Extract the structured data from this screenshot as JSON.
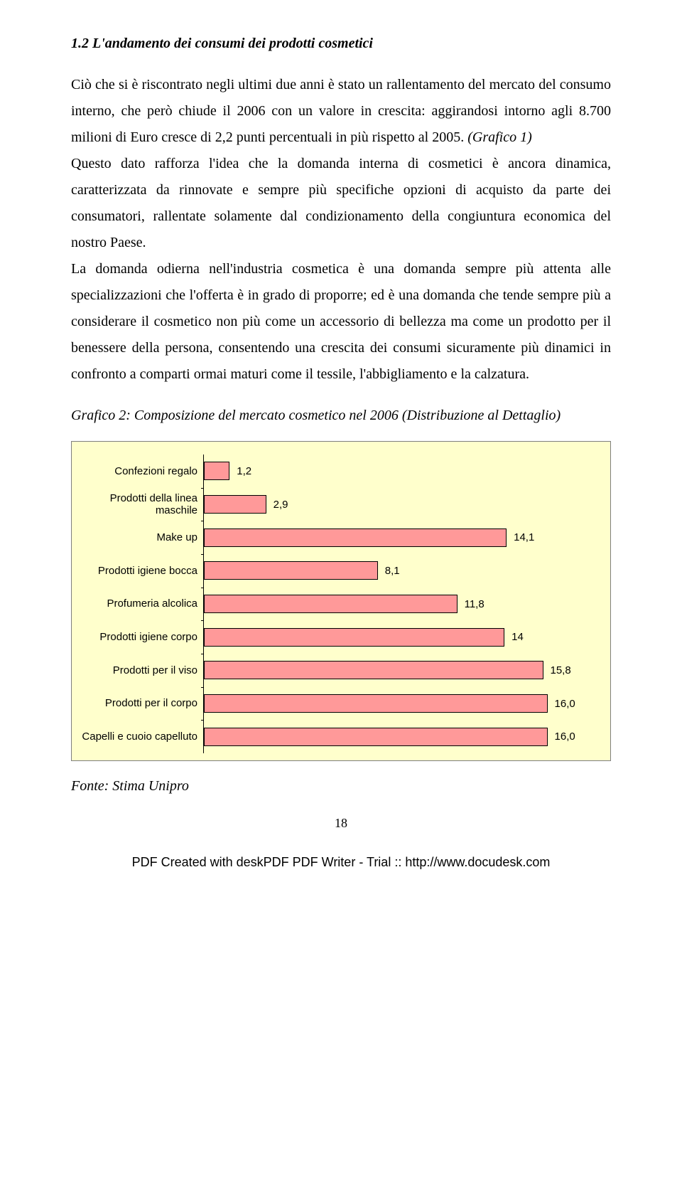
{
  "section_title": "1.2 L'andamento dei consumi dei prodotti cosmetici",
  "para1_a": "Ciò che si è riscontrato negli ultimi due anni è stato un rallentamento del mercato del consumo interno, che però chiude il 2006 con un valore in crescita: aggirandosi intorno agli 8.700 milioni di Euro cresce di 2,2 punti percentuali in più rispetto al 2005. ",
  "para1_ref": "(Grafico 1)",
  "para2": "Questo dato rafforza l'idea che la domanda interna di cosmetici è ancora dinamica, caratterizzata da rinnovate e sempre più specifiche opzioni di acquisto da parte dei consumatori, rallentate solamente dal condizionamento della congiuntura economica del nostro Paese.",
  "para3": "La domanda odierna nell'industria cosmetica è una domanda sempre più attenta alle specializzazioni che l'offerta è in grado di proporre; ed è una domanda che tende sempre più a considerare il cosmetico non più come un accessorio di bellezza ma come un prodotto per il benessere della persona, consentendo una crescita dei consumi sicuramente più dinamici in confronto a comparti ormai maturi come il tessile, l'abbigliamento e la calzatura.",
  "chart_title": "Grafico 2: Composizione del mercato cosmetico nel 2006 (Distribuzione al Dettaglio)",
  "chart": {
    "type": "bar-horizontal",
    "background_color": "#ffffcc",
    "bar_color": "#ff9999",
    "bar_border": "#000000",
    "axis_color": "#000000",
    "label_font": "Arial",
    "label_fontsize": 15,
    "xmax": 18,
    "categories": [
      {
        "label": "Confezioni regalo",
        "value": 1.2,
        "value_label": "1,2"
      },
      {
        "label": "Prodotti della linea maschile",
        "value": 2.9,
        "value_label": "2,9"
      },
      {
        "label": "Make up",
        "value": 14.1,
        "value_label": "14,1"
      },
      {
        "label": "Prodotti igiene bocca",
        "value": 8.1,
        "value_label": "8,1"
      },
      {
        "label": "Profumeria alcolica",
        "value": 11.8,
        "value_label": "11,8"
      },
      {
        "label": "Prodotti igiene corpo",
        "value": 14.0,
        "value_label": "14"
      },
      {
        "label": "Prodotti per il viso",
        "value": 15.8,
        "value_label": "15,8"
      },
      {
        "label": "Prodotti per il corpo",
        "value": 16.0,
        "value_label": "16,0"
      },
      {
        "label": "Capelli e cuoio capelluto",
        "value": 16.0,
        "value_label": "16,0"
      }
    ]
  },
  "source": "Fonte: Stima Unipro",
  "page_number": "18",
  "footer": "PDF Created with deskPDF PDF Writer - Trial :: http://www.docudesk.com"
}
